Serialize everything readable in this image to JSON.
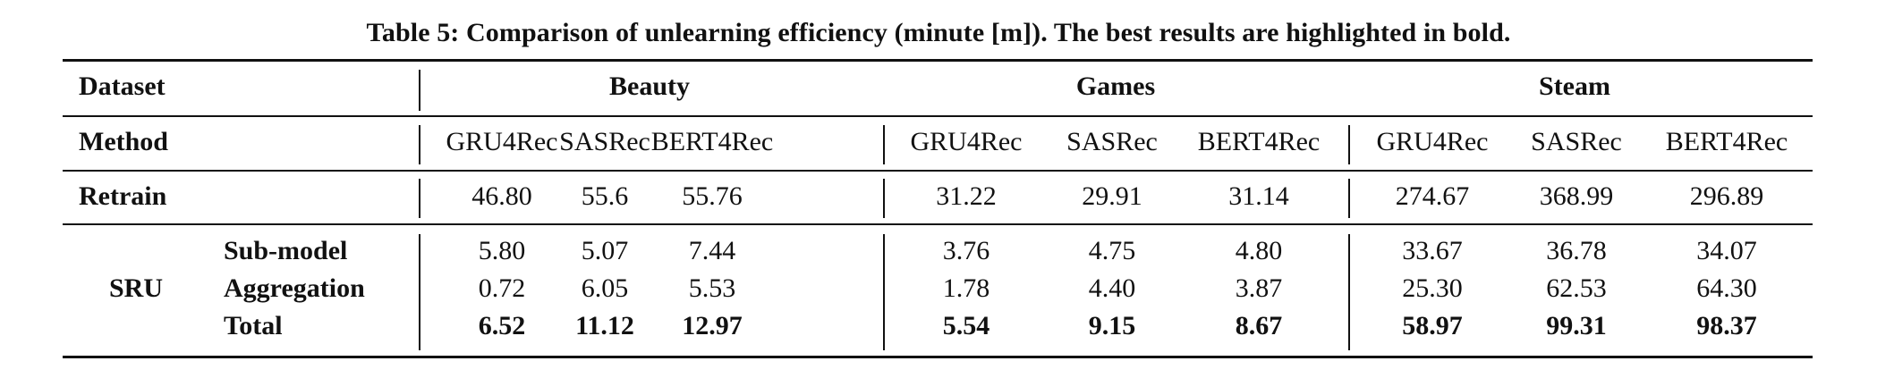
{
  "caption": "Table 5: Comparison of unlearning efficiency (minute [m]). The best results are highlighted in bold.",
  "header": {
    "dataset_label": "Dataset",
    "datasets": [
      "Beauty",
      "Games",
      "Steam"
    ],
    "method_label": "Method",
    "methods": [
      "GRU4Rec",
      "SASRec",
      "BERT4Rec",
      "GRU4Rec",
      "SASRec",
      "BERT4Rec",
      "GRU4Rec",
      "SASRec",
      "BERT4Rec"
    ]
  },
  "retrain": {
    "label": "Retrain",
    "values": [
      "46.80",
      "55.6",
      "55.76",
      "31.22",
      "29.91",
      "31.14",
      "274.67",
      "368.99",
      "296.89"
    ]
  },
  "sru": {
    "label": "SRU",
    "rows": [
      {
        "label": "Sub-model",
        "values": [
          "5.80",
          "5.07",
          "7.44",
          "3.76",
          "4.75",
          "4.80",
          "33.67",
          "36.78",
          "34.07"
        ],
        "bold": false
      },
      {
        "label": "Aggregation",
        "values": [
          "0.72",
          "6.05",
          "5.53",
          "1.78",
          "4.40",
          "3.87",
          "25.30",
          "62.53",
          "64.30"
        ],
        "bold": false
      },
      {
        "label": "Total",
        "values": [
          "6.52",
          "11.12",
          "12.97",
          "5.54",
          "9.15",
          "8.67",
          "58.97",
          "99.31",
          "98.37"
        ],
        "bold": true
      }
    ]
  }
}
